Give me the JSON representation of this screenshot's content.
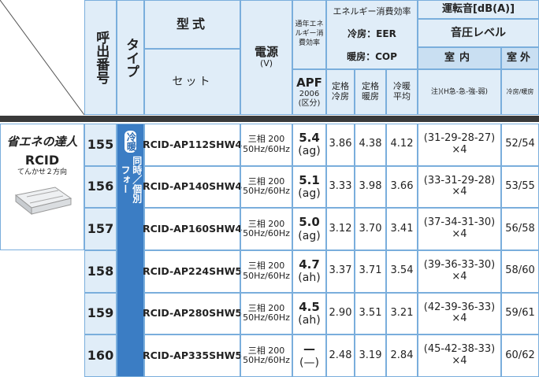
{
  "header": {
    "call_number": "呼出番号",
    "type": "タイプ",
    "model": "型式",
    "set": "セット",
    "power": "電源",
    "power_unit": "(V)",
    "annual_efficiency": "通年エネルギー消費効率",
    "energy_efficiency": "エネルギー消費効率",
    "eer": "冷房：EER",
    "cop": "暖房：COP",
    "apf": "APF",
    "apf_year": "2006",
    "apf_class": "(区分)",
    "rated_cooling": "定格冷房",
    "rated_heating": "定格暖房",
    "average": "冷暖平均",
    "noise": "運転音[dB(A)]",
    "sound_pressure": "音圧レベル",
    "indoor": "室内",
    "outdoor": "室外",
    "indoor_note": "注)(H急-急-強-弱)",
    "outdoor_note": "冷房/暖房"
  },
  "product": {
    "badge": "省エネの達人",
    "name": "RCID",
    "subtitle": "てんかせ２方向",
    "type_tag": "冷暖",
    "type_mode": "同時／個別",
    "type_mode_2": "フォー"
  },
  "rows": [
    {
      "number": "155",
      "model": "RCID-AP112SHW4",
      "power": "三相 200",
      "frequency": "50Hz/60Hz",
      "apf": "5.4",
      "apf_class": "(ag)",
      "cooling": "3.86",
      "heating": "4.38",
      "average": "4.12",
      "indoor": "(31-29-28-27)",
      "indoor_units": "×4",
      "outdoor": "52/54"
    },
    {
      "number": "156",
      "model": "RCID-AP140SHW4",
      "power": "三相 200",
      "frequency": "50Hz/60Hz",
      "apf": "5.1",
      "apf_class": "(ag)",
      "cooling": "3.33",
      "heating": "3.98",
      "average": "3.66",
      "indoor": "(33-31-29-28)",
      "indoor_units": "×4",
      "outdoor": "53/55"
    },
    {
      "number": "157",
      "model": "RCID-AP160SHW4",
      "power": "三相 200",
      "frequency": "50Hz/60Hz",
      "apf": "5.0",
      "apf_class": "(ag)",
      "cooling": "3.12",
      "heating": "3.70",
      "average": "3.41",
      "indoor": "(37-34-31-30)",
      "indoor_units": "×4",
      "outdoor": "56/58"
    },
    {
      "number": "158",
      "model": "RCID-AP224SHW5",
      "power": "三相 200",
      "frequency": "50Hz/60Hz",
      "apf": "4.7",
      "apf_class": "(ah)",
      "cooling": "3.37",
      "heating": "3.71",
      "average": "3.54",
      "indoor": "(39-36-33-30)",
      "indoor_units": "×4",
      "outdoor": "58/60"
    },
    {
      "number": "159",
      "model": "RCID-AP280SHW5",
      "power": "三相 200",
      "frequency": "50Hz/60Hz",
      "apf": "4.5",
      "apf_class": "(ah)",
      "cooling": "2.90",
      "heating": "3.51",
      "average": "3.21",
      "indoor": "(42-39-36-33)",
      "indoor_units": "×4",
      "outdoor": "59/61"
    },
    {
      "number": "160",
      "model": "RCID-AP335SHW5",
      "power": "三相 200",
      "frequency": "50Hz/60Hz",
      "apf": "—",
      "apf_class": "(—)",
      "cooling": "2.48",
      "heating": "3.19",
      "average": "2.84",
      "indoor": "(45-42-38-33)",
      "indoor_units": "×4",
      "outdoor": "60/62"
    }
  ]
}
